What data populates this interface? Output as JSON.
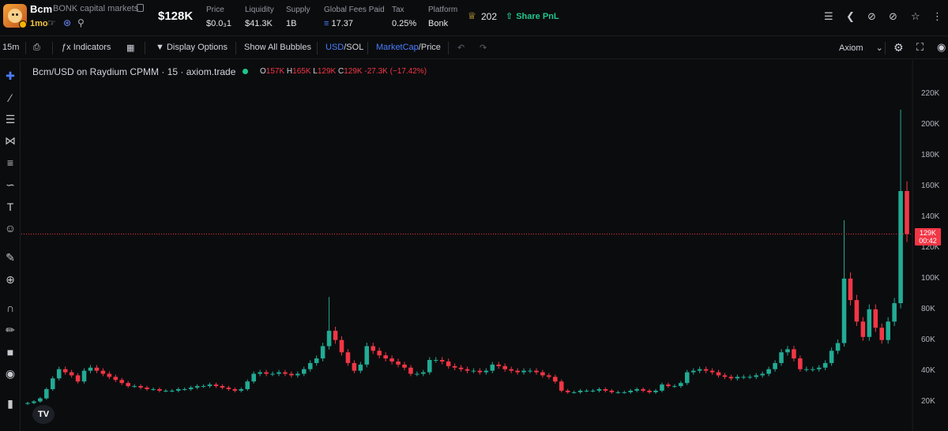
{
  "token": {
    "symbol": "Bcm",
    "name": "BONK capital markets",
    "age": "1mo"
  },
  "header": {
    "market_cap": "$128K",
    "stats": [
      {
        "label": "Price",
        "value": "$0.0₃1"
      },
      {
        "label": "Liquidity",
        "value": "$41.3K"
      },
      {
        "label": "Supply",
        "value": "1B"
      },
      {
        "label": "Global Fees Paid",
        "value": "17.37"
      },
      {
        "label": "Tax",
        "value": "0.25%"
      },
      {
        "label": "Platform",
        "value": "Bonk"
      }
    ],
    "crown_count": "202",
    "share_label": "Share PnL"
  },
  "toolbar": {
    "interval": "15m",
    "indicators": "Indicators",
    "display_options": "Display Options",
    "show_bubbles": "Show All Bubbles",
    "usd": "USD",
    "sol": "SOL",
    "marketcap": "MarketCap",
    "price": "Price",
    "layout_name": "Axiom"
  },
  "chart": {
    "legend_title": "Bcm/USD on Raydium CPMM · 15 · axiom.trade",
    "ohlc": {
      "o_label": "O",
      "o": "157K",
      "h_label": "H",
      "h": "165K",
      "l_label": "L",
      "l": "129K",
      "c_label": "C",
      "c": "129K",
      "change": "-27.3K (−17.42%)"
    },
    "price_tag": {
      "price": "129K",
      "countdown": "00:42"
    },
    "logo": "TV"
  },
  "colors": {
    "up": "#22ab94",
    "down": "#f23645",
    "accent": "#4a7dff",
    "background": "#0b0c0e"
  },
  "chart_data": {
    "type": "candlestick",
    "y_axis_unit": "market cap (USD)",
    "ylim": [
      10000,
      230000
    ],
    "y_ticks": [
      "20K",
      "40K",
      "60K",
      "80K",
      "100K",
      "120K",
      "140K",
      "160K",
      "180K",
      "200K",
      "220K"
    ],
    "y_tick_values": [
      20000,
      40000,
      60000,
      80000,
      100000,
      120000,
      140000,
      160000,
      180000,
      200000,
      220000
    ],
    "current_price": 129000,
    "candles_close": [
      19000,
      20000,
      22000,
      28000,
      35000,
      41000,
      39000,
      37000,
      33000,
      40000,
      42000,
      40000,
      38000,
      36000,
      34000,
      32000,
      30000,
      30000,
      29000,
      28000,
      28000,
      27000,
      27000,
      27000,
      28000,
      28000,
      29000,
      30000,
      30000,
      31000,
      30000,
      29000,
      28000,
      27000,
      28000,
      33000,
      38000,
      39000,
      38000,
      38000,
      39000,
      38000,
      37000,
      38000,
      41000,
      45000,
      48000,
      56000,
      66000,
      60000,
      52000,
      45000,
      40000,
      44000,
      56000,
      53000,
      50000,
      48000,
      46000,
      44000,
      42000,
      38000,
      38000,
      39000,
      47000,
      47000,
      46000,
      43000,
      42000,
      41000,
      40000,
      40000,
      39000,
      40000,
      44000,
      43000,
      41000,
      40000,
      39000,
      40000,
      40000,
      39000,
      37000,
      36000,
      33000,
      27000,
      26000,
      26000,
      27000,
      27000,
      27000,
      28000,
      27000,
      26000,
      26000,
      26000,
      27000,
      28000,
      27000,
      26000,
      27000,
      31000,
      30000,
      30000,
      32000,
      39000,
      40000,
      41000,
      40000,
      39000,
      37000,
      36000,
      35000,
      36000,
      36000,
      36000,
      37000,
      38000,
      41000,
      45000,
      52000,
      54000,
      48000,
      41000,
      41000,
      41000,
      42000,
      45000,
      53000,
      58000,
      100000,
      86000,
      72000,
      62000,
      80000,
      68000,
      60000,
      72000,
      84000,
      157000,
      129000
    ]
  }
}
